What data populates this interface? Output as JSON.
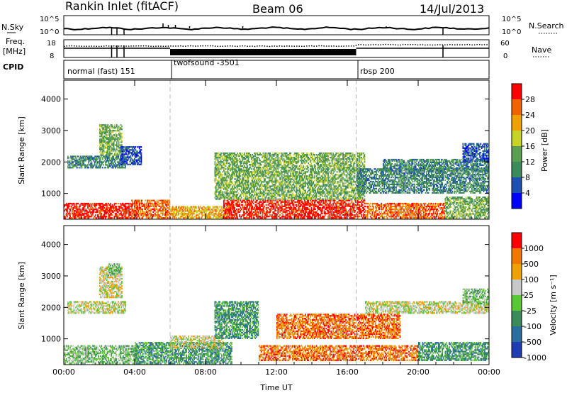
{
  "header": {
    "station": "Rankin Inlet (fitACF)",
    "beam": "Beam 06",
    "date": "14/Jul/2013"
  },
  "top_panels": {
    "nsky_label": "N.Sky",
    "nsearch_label": "N.Search",
    "count_ticks": [
      "10^5",
      "10^0"
    ],
    "freq_label_1": "Freq.",
    "freq_label_2": "[MHz]",
    "freq_ticks": [
      "18",
      "8"
    ],
    "nave_ticks": [
      "60",
      "0"
    ],
    "nave_label": "Nave",
    "cpid_label": "CPID",
    "modes": [
      {
        "label": "normal (fast) 151",
        "start_h": 0
      },
      {
        "label": "twofsound -3501",
        "start_h": 6
      },
      {
        "label": "rbsp 200",
        "start_h": 16.5
      }
    ]
  },
  "colorbars": {
    "power": {
      "label": "Power [dB]",
      "ticks": [
        "28",
        "24",
        "20",
        "16",
        "12",
        "8",
        "4"
      ]
    },
    "velocity": {
      "label": "Velocity  [m s⁻¹]",
      "ticks": [
        "1000",
        "500",
        "100",
        "25",
        "-25",
        "-100",
        "-500",
        "-1000"
      ]
    }
  },
  "colors": {
    "power": [
      "#0000ff",
      "#1e50b4",
      "#3c8c5a",
      "#5aa050",
      "#c8d228",
      "#f0a000",
      "#f06400",
      "#ff0000"
    ],
    "velocity": [
      "#1e3cb4",
      "#2a6ea0",
      "#3c8c5a",
      "#5ac832",
      "#c8c8c8",
      "#f0a000",
      "#f07800",
      "#ff0000"
    ],
    "gridline": "#bbbbbb"
  },
  "chart_data": [
    {
      "type": "heatmap",
      "title": "Power",
      "xlabel": "Time UT",
      "ylabel": "Slant Range [km]",
      "xlim": [
        0,
        24
      ],
      "ylim": [
        180,
        4600
      ],
      "xticks": [
        "00:00",
        "04:00",
        "08:00",
        "12:00",
        "16:00",
        "20:00",
        "00:00"
      ],
      "yticks": [
        1000,
        2000,
        3000,
        4000
      ],
      "mode_boundaries_h": [
        6,
        16.5
      ],
      "scatter_regions": [
        {
          "t0": 0,
          "t1": 4.2,
          "r0": 200,
          "r1": 700,
          "level": 7
        },
        {
          "t0": 0.2,
          "t1": 3.5,
          "r0": 1800,
          "r1": 2200,
          "level": 2
        },
        {
          "t0": 2,
          "t1": 3.3,
          "r0": 2200,
          "r1": 3200,
          "level": 3
        },
        {
          "t0": 3.2,
          "t1": 4.4,
          "r0": 1900,
          "r1": 2500,
          "level": 1
        },
        {
          "t0": 3.8,
          "t1": 6,
          "r0": 200,
          "r1": 800,
          "level": 6
        },
        {
          "t0": 6,
          "t1": 9.5,
          "r0": 200,
          "r1": 600,
          "level": 5
        },
        {
          "t0": 9,
          "t1": 17,
          "r0": 200,
          "r1": 800,
          "level": 7
        },
        {
          "t0": 8.5,
          "t1": 17,
          "r0": 800,
          "r1": 2300,
          "level": 3
        },
        {
          "t0": 17,
          "t1": 21.5,
          "r0": 200,
          "r1": 700,
          "level": 6
        },
        {
          "t0": 16.5,
          "t1": 24,
          "r0": 1000,
          "r1": 1800,
          "level": 2
        },
        {
          "t0": 18,
          "t1": 24,
          "r0": 1700,
          "r1": 2100,
          "level": 2
        },
        {
          "t0": 21.5,
          "t1": 24,
          "r0": 200,
          "r1": 900,
          "level": 3
        },
        {
          "t0": 22.5,
          "t1": 24,
          "r0": 2000,
          "r1": 2600,
          "level": 1
        }
      ]
    },
    {
      "type": "heatmap",
      "title": "Velocity",
      "xlabel": "Time UT",
      "ylabel": "Slant Range [km]",
      "xlim": [
        0,
        24
      ],
      "ylim": [
        180,
        4600
      ],
      "xticks": [
        "00:00",
        "04:00",
        "08:00",
        "12:00",
        "16:00",
        "20:00",
        "00:00"
      ],
      "yticks": [
        1000,
        2000,
        3000,
        4000
      ],
      "mode_boundaries_h": [
        6,
        16.5
      ],
      "scatter_regions": [
        {
          "t0": 0,
          "t1": 4.2,
          "r0": 200,
          "r1": 800,
          "level": 3
        },
        {
          "t0": 0.2,
          "t1": 3.5,
          "r0": 1800,
          "r1": 2200,
          "level": 4
        },
        {
          "t0": 2,
          "t1": 3.3,
          "r0": 2300,
          "r1": 3300,
          "level": 4
        },
        {
          "t0": 2.5,
          "t1": 3.2,
          "r0": 3000,
          "r1": 3400,
          "level": 3
        },
        {
          "t0": 4,
          "t1": 9.5,
          "r0": 200,
          "r1": 900,
          "level": 2
        },
        {
          "t0": 6,
          "t1": 9,
          "r0": 700,
          "r1": 1100,
          "level": 4
        },
        {
          "t0": 8.5,
          "t1": 11,
          "r0": 1000,
          "r1": 2200,
          "level": 2
        },
        {
          "t0": 11,
          "t1": 20,
          "r0": 300,
          "r1": 800,
          "level": 6
        },
        {
          "t0": 12,
          "t1": 19,
          "r0": 1000,
          "r1": 1800,
          "level": 6
        },
        {
          "t0": 17,
          "t1": 24,
          "r0": 1800,
          "r1": 2200,
          "level": 4
        },
        {
          "t0": 20,
          "t1": 24,
          "r0": 300,
          "r1": 900,
          "level": 2
        },
        {
          "t0": 22.5,
          "t1": 24,
          "r0": 2100,
          "r1": 2600,
          "level": 3
        }
      ]
    }
  ]
}
